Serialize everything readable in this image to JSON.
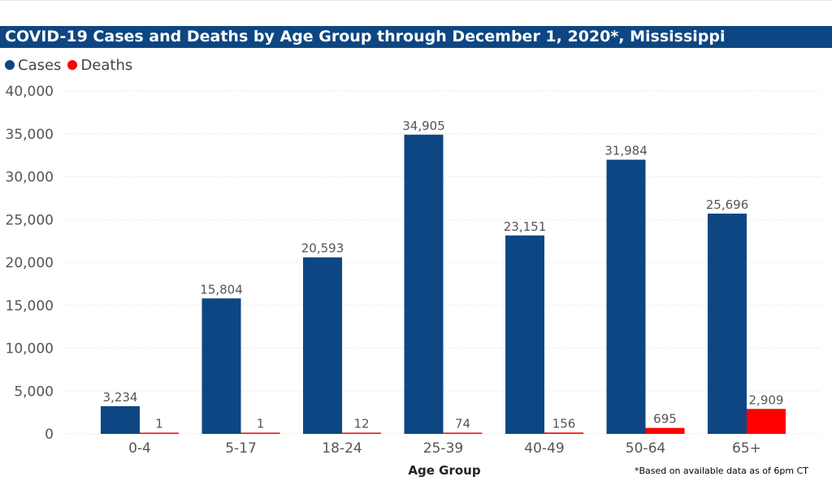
{
  "title": "COVID-19 Cases and Deaths by Age Group through December 1, 2020*, Mississippi",
  "footnote": "*Based on available data as of 6pm CT",
  "colors": {
    "title_bg": "#0d4682",
    "cases": "#0d4682",
    "deaths": "#ff0000"
  },
  "chart_data": {
    "type": "bar",
    "title": "COVID-19 Cases and Deaths by Age Group through December 1, 2020*, Mississippi",
    "xlabel": "Age Group",
    "ylabel": "",
    "ylim": [
      0,
      40000
    ],
    "yticks": [
      0,
      5000,
      10000,
      15000,
      20000,
      25000,
      30000,
      35000,
      40000
    ],
    "ytick_labels": [
      "0",
      "5,000",
      "10,000",
      "15,000",
      "20,000",
      "25,000",
      "30,000",
      "35,000",
      "40,000"
    ],
    "categories": [
      "0-4",
      "5-17",
      "18-24",
      "25-39",
      "40-49",
      "50-64",
      "65+"
    ],
    "series": [
      {
        "name": "Cases",
        "color": "#0d4682",
        "values": [
          3234,
          15804,
          20593,
          34905,
          23151,
          31984,
          25696
        ],
        "labels": [
          "3,234",
          "15,804",
          "20,593",
          "34,905",
          "23,151",
          "31,984",
          "25,696"
        ]
      },
      {
        "name": "Deaths",
        "color": "#ff0000",
        "values": [
          1,
          1,
          12,
          74,
          156,
          695,
          2909
        ],
        "labels": [
          "1",
          "1",
          "12",
          "74",
          "156",
          "695",
          "2,909"
        ]
      }
    ],
    "grid": true,
    "legend_position": "top-left"
  }
}
